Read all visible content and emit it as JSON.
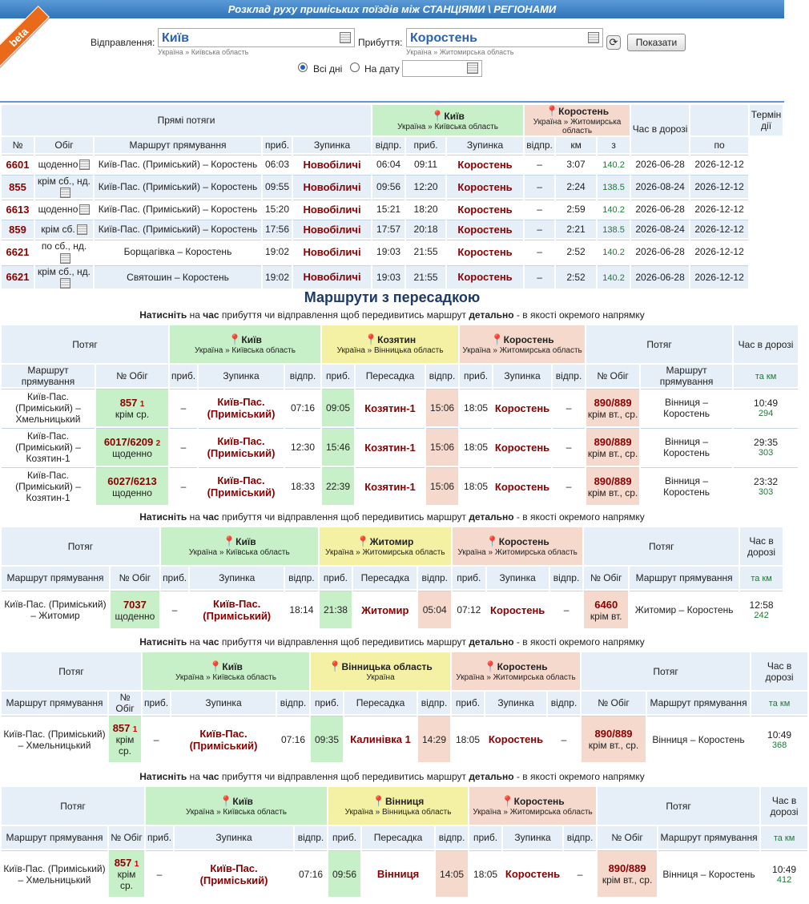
{
  "header": {
    "title": "Розклад руху приміських поїздів між СТАНЦІЯМИ \\ РЕГІОНАМИ",
    "beta": "beta"
  },
  "form": {
    "from_label": "Відправлення:",
    "from_value": "Київ",
    "from_sub": "Україна » Київська область",
    "to_label": "Прибуття:",
    "to_value": "Коростень",
    "to_sub": "Україна » Житомирська область",
    "show_button": "Показати",
    "all_days": "Всі дні",
    "on_date": "На дату",
    "date_value": ""
  },
  "direct": {
    "title": "Прямі потяги",
    "from": {
      "name": "Київ",
      "region": "Україна » Київська область"
    },
    "to": {
      "name": "Коростень",
      "region": "Україна » Житомирська область"
    },
    "col_time": "Час в дорозі",
    "col_term": "Термін дії",
    "cols": [
      "№",
      "Обіг",
      "Маршрут прямування",
      "приб.",
      "Зупинка",
      "відпр.",
      "приб.",
      "Зупинка",
      "відпр.",
      "км",
      "з",
      "по"
    ],
    "rows": [
      {
        "num": "6601",
        "days": "щоденно",
        "route": "Київ-Пас. (Приміський) – Коростень",
        "arr1": "06:03",
        "st1": "Новобіличі",
        "dep1": "06:04",
        "arr2": "09:11",
        "st2": "Коростень",
        "dep2": "–",
        "time": "3:07",
        "km": "140.2",
        "from": "2026-06-28",
        "to": "2026-12-12"
      },
      {
        "num": "855",
        "days": "крім сб., нд.",
        "route": "Київ-Пас. (Приміський) – Коростень",
        "arr1": "09:55",
        "st1": "Новобіличі",
        "dep1": "09:56",
        "arr2": "12:20",
        "st2": "Коростень",
        "dep2": "–",
        "time": "2:24",
        "km": "138.5",
        "from": "2026-08-24",
        "to": "2026-12-12"
      },
      {
        "num": "6613",
        "days": "щоденно",
        "route": "Київ-Пас. (Приміський) – Коростень",
        "arr1": "15:20",
        "st1": "Новобіличі",
        "dep1": "15:21",
        "arr2": "18:20",
        "st2": "Коростень",
        "dep2": "–",
        "time": "2:59",
        "km": "140.2",
        "from": "2026-06-28",
        "to": "2026-12-12"
      },
      {
        "num": "859",
        "days": "крім сб.",
        "route": "Київ-Пас. (Приміський) – Коростень",
        "arr1": "17:56",
        "st1": "Новобіличі",
        "dep1": "17:57",
        "arr2": "20:18",
        "st2": "Коростень",
        "dep2": "–",
        "time": "2:21",
        "km": "138.5",
        "from": "2026-08-24",
        "to": "2026-12-12"
      },
      {
        "num": "6621",
        "days": "по сб., нд.",
        "route": "Борщагівка – Коростень",
        "arr1": "19:02",
        "st1": "Новобіличі",
        "dep1": "19:03",
        "arr2": "21:55",
        "st2": "Коростень",
        "dep2": "–",
        "time": "2:52",
        "km": "140.2",
        "from": "2026-06-28",
        "to": "2026-12-12"
      },
      {
        "num": "6621",
        "days": "крім сб., нд.",
        "route": "Святошин – Коростень",
        "arr1": "19:02",
        "st1": "Новобіличі",
        "dep1": "19:03",
        "arr2": "21:55",
        "st2": "Коростень",
        "dep2": "–",
        "time": "2:52",
        "km": "140.2",
        "from": "2026-06-28",
        "to": "2026-12-12"
      }
    ]
  },
  "transfer": {
    "title": "Маршрути з пересадкою",
    "note_a": "Натисніть",
    "note_b": " на ",
    "note_c": "час",
    "note_d": " прибуття чи відправлення щоб передивитись маршрут ",
    "note_e": "детально",
    "note_f": " - в якості окремого напрямку",
    "h_train": "Потяг",
    "h_time": "Час в дорозі",
    "h_tkm": "та км",
    "h_route": "Маршрут прямування",
    "h_num": "№ Обіг",
    "h_arr": "приб.",
    "h_stop": "Зупинка",
    "h_dep": "відпр.",
    "h_transfer": "Пересадка",
    "groups": [
      {
        "from": {
          "name": "Київ",
          "region": "Україна » Київська область"
        },
        "mid": {
          "name": "Козятин",
          "region": "Україна » Вінницька область"
        },
        "to": {
          "name": "Коростень",
          "region": "Україна » Житомирська область"
        },
        "rows": [
          {
            "route1": "Київ-Пас. (Приміський) – Хмельницький",
            "num1": "857",
            "sup1": "1",
            "days1": "крім ср.",
            "arr1": "–",
            "st1": "Київ-Пас. (Приміський)",
            "dep1": "07:16",
            "arr_t": "09:05",
            "st_t": "Козятин-1",
            "dep_t": "15:06",
            "arr2": "18:05",
            "st2": "Коростень",
            "dep2": "–",
            "num2": "890/889",
            "days2": "крім вт., ср.",
            "route2": "Вінниця – Коростень",
            "time": "10:49",
            "km": "294"
          },
          {
            "route1": "Київ-Пас. (Приміський) – Козятин-1",
            "num1": "6017/6209",
            "sup1": "2",
            "days1": "щоденно",
            "arr1": "–",
            "st1": "Київ-Пас. (Приміський)",
            "dep1": "12:30",
            "arr_t": "15:46",
            "st_t": "Козятин-1",
            "dep_t": "15:06",
            "arr2": "18:05",
            "st2": "Коростень",
            "dep2": "–",
            "num2": "890/889",
            "days2": "крім вт., ср.",
            "route2": "Вінниця – Коростень",
            "time": "29:35",
            "km": "303"
          },
          {
            "route1": "Київ-Пас. (Приміський) – Козятин-1",
            "num1": "6027/6213",
            "sup1": "",
            "days1": "щоденно",
            "arr1": "–",
            "st1": "Київ-Пас. (Приміський)",
            "dep1": "18:33",
            "arr_t": "22:39",
            "st_t": "Козятин-1",
            "dep_t": "15:06",
            "arr2": "18:05",
            "st2": "Коростень",
            "dep2": "–",
            "num2": "890/889",
            "days2": "крім вт., ср.",
            "route2": "Вінниця – Коростень",
            "time": "23:32",
            "km": "303"
          }
        ]
      },
      {
        "from": {
          "name": "Київ",
          "region": "Україна » Київська область"
        },
        "mid": {
          "name": "Житомир",
          "region": "Україна » Житомирська область"
        },
        "to": {
          "name": "Коростень",
          "region": "Україна » Житомирська область"
        },
        "rows": [
          {
            "route1": "Київ-Пас. (Приміський) – Житомир",
            "num1": "7037",
            "sup1": "",
            "days1": "щоденно",
            "arr1": "–",
            "st1": "Київ-Пас. (Приміський)",
            "dep1": "18:14",
            "arr_t": "21:38",
            "st_t": "Житомир",
            "dep_t": "05:04",
            "arr2": "07:12",
            "st2": "Коростень",
            "dep2": "–",
            "num2": "6460",
            "days2": "крім вт.",
            "route2": "Житомир – Коростень",
            "time": "12:58",
            "km": "242"
          }
        ]
      },
      {
        "from": {
          "name": "Київ",
          "region": "Україна » Київська область"
        },
        "mid": {
          "name": "Вінницька область",
          "region": "Україна"
        },
        "to": {
          "name": "Коростень",
          "region": "Україна » Житомирська область"
        },
        "rows": [
          {
            "route1": "Київ-Пас. (Приміський) – Хмельницький",
            "num1": "857",
            "sup1": "1",
            "days1": "крім ср.",
            "arr1": "–",
            "st1": "Київ-Пас. (Приміський)",
            "dep1": "07:16",
            "arr_t": "09:35",
            "st_t": "Калинівка 1",
            "dep_t": "14:29",
            "arr2": "18:05",
            "st2": "Коростень",
            "dep2": "–",
            "num2": "890/889",
            "days2": "крім вт., ср.",
            "route2": "Вінниця – Коростень",
            "time": "10:49",
            "km": "368"
          }
        ]
      },
      {
        "from": {
          "name": "Київ",
          "region": "Україна » Київська область"
        },
        "mid": {
          "name": "Вінниця",
          "region": "Україна » Вінницька область"
        },
        "to": {
          "name": "Коростень",
          "region": "Україна » Житомирська область"
        },
        "rows": [
          {
            "route1": "Київ-Пас. (Приміський) – Хмельницький",
            "num1": "857",
            "sup1": "1",
            "days1": "крім ср.",
            "arr1": "–",
            "st1": "Київ-Пас. (Приміський)",
            "dep1": "07:16",
            "arr_t": "09:56",
            "st_t": "Вінниця",
            "dep_t": "14:05",
            "arr2": "18:05",
            "st2": "Коростень",
            "dep2": "–",
            "num2": "890/889",
            "days2": "крім вт., ср.",
            "route2": "Вінниця – Коростень",
            "time": "10:49",
            "km": "412"
          }
        ]
      }
    ]
  }
}
